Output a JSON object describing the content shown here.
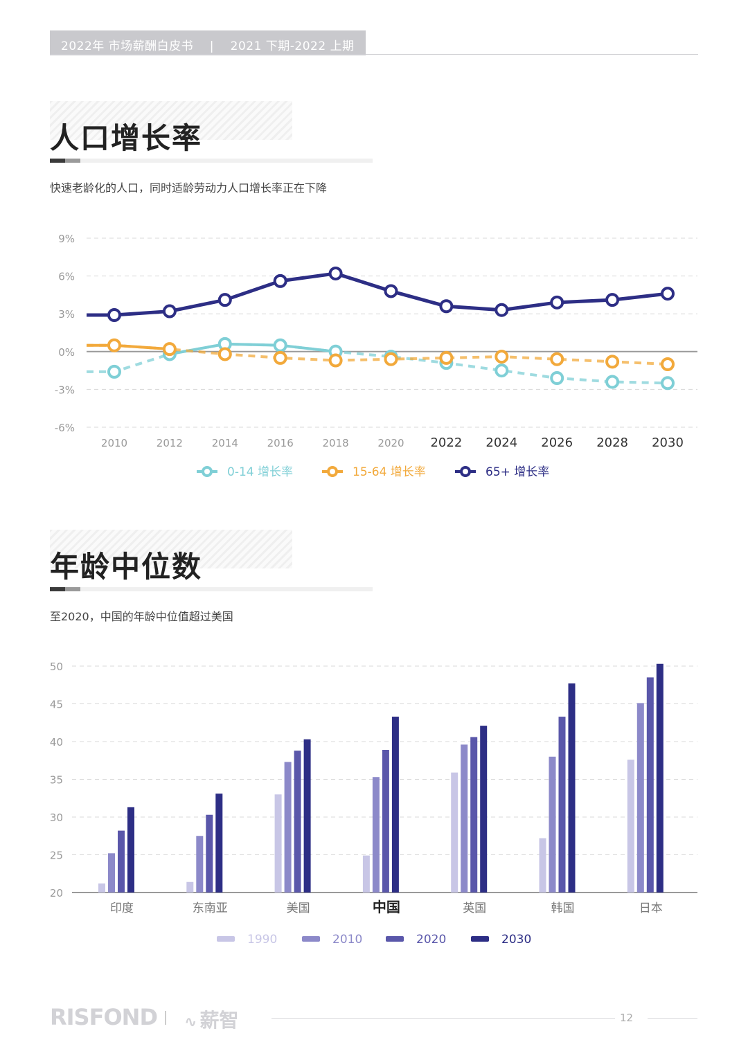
{
  "header": {
    "text": "2022年 市场薪酬白皮书    |    2021 下期-2022 上期"
  },
  "section1": {
    "title": "人口增长率",
    "subtitle": "快速老龄化的人口，同时适龄劳动力人口增长率正在下降"
  },
  "section2": {
    "title": "年龄中位数",
    "subtitle": "至2020，中国的年龄中位值超过美国"
  },
  "chart_data": [
    {
      "type": "line",
      "x": [
        "2010",
        "2012",
        "2014",
        "2016",
        "2018",
        "2020",
        "2022",
        "2024",
        "2026",
        "2028",
        "2030"
      ],
      "ylim": [
        -6,
        9
      ],
      "yticks": [
        "9%",
        "6%",
        "3%",
        "0%",
        "-3%",
        "-6%"
      ],
      "grid": true,
      "legend_position": "bottom",
      "series": [
        {
          "name": "0-14 增长率",
          "color": "#7fcfd6",
          "values": [
            -1.6,
            -0.2,
            0.6,
            0.5,
            0.0,
            -0.4,
            -0.9,
            -1.5,
            -2.1,
            -2.4,
            -2.5
          ]
        },
        {
          "name": "15-64 增长率",
          "color": "#f2a93b",
          "values": [
            0.5,
            0.2,
            -0.2,
            -0.5,
            -0.7,
            -0.6,
            -0.5,
            -0.4,
            -0.6,
            -0.8,
            -1.0
          ]
        },
        {
          "name": "65+ 增长率",
          "color": "#2d2e85",
          "values": [
            2.9,
            3.2,
            4.1,
            5.6,
            6.2,
            4.8,
            3.6,
            3.3,
            3.9,
            4.1,
            4.6
          ]
        }
      ]
    },
    {
      "type": "bar",
      "categories": [
        "印度",
        "东南亚",
        "美国",
        "中国",
        "英国",
        "韩国",
        "日本"
      ],
      "ylim": [
        20,
        50
      ],
      "yticks": [
        "50",
        "45",
        "40",
        "35",
        "30",
        "25",
        "20"
      ],
      "grid": true,
      "legend_position": "bottom",
      "series": [
        {
          "name": "1990",
          "color": "#c8c6e6",
          "values": [
            21.2,
            21.4,
            33.0,
            24.9,
            35.9,
            27.2,
            37.6
          ]
        },
        {
          "name": "2010",
          "color": "#8c89c9",
          "values": [
            25.2,
            27.5,
            37.3,
            35.3,
            39.6,
            38.0,
            45.1
          ]
        },
        {
          "name": "2020",
          "color": "#5a57aa",
          "values": [
            28.2,
            30.3,
            38.8,
            38.9,
            40.6,
            43.3,
            48.5
          ]
        },
        {
          "name": "2030",
          "color": "#2d2e85",
          "values": [
            31.3,
            33.1,
            40.3,
            43.3,
            42.1,
            47.7,
            50.3
          ]
        }
      ]
    }
  ],
  "footer": {
    "logo": "RISFOND",
    "brand2": "薪智",
    "page": "12"
  }
}
